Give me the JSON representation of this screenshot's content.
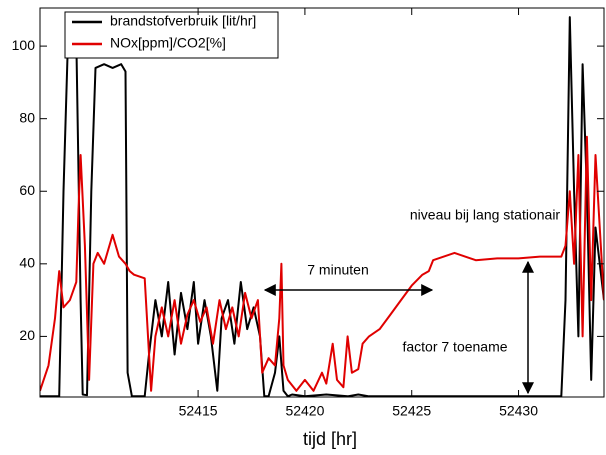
{
  "chart_data": {
    "type": "line",
    "x_label": "tijd [hr]",
    "xlim": [
      52407.6,
      52434.0
    ],
    "xticks": [
      52415,
      52420,
      52425,
      52430
    ],
    "ylim": [
      3.3,
      110.5
    ],
    "yticks": [
      20,
      40,
      60,
      80,
      100
    ],
    "grid": false,
    "legend": "top-left",
    "series": [
      {
        "name": "brandstofverbruik [lit/hr]",
        "color": "#000000",
        "x": [
          52407.6,
          52408.5,
          52408.7,
          52408.9,
          52409.3,
          52409.5,
          52409.6,
          52409.8,
          52410.0,
          52410.2,
          52410.6,
          52411.0,
          52411.4,
          52411.6,
          52411.7,
          52411.9,
          52412.5,
          52412.7,
          52413.0,
          52413.3,
          52413.6,
          52413.9,
          52414.2,
          52414.5,
          52414.8,
          52415.0,
          52415.3,
          52415.6,
          52415.9,
          52416.1,
          52416.4,
          52416.7,
          52417.0,
          52417.3,
          52417.6,
          52417.9,
          52418.1,
          52418.3,
          52418.6,
          52418.8,
          52419.0,
          52419.2,
          52419.4,
          52420.0,
          52421.0,
          52422.0,
          52422.5,
          52423.0,
          52424.0,
          52428.0,
          52432.0,
          52432.2,
          52432.4,
          52432.6,
          52432.8,
          52433.0,
          52433.2,
          52433.4,
          52433.6,
          52434.0
        ],
        "values": [
          3.5,
          3.5,
          60,
          100,
          102,
          30,
          4,
          3.8,
          60,
          94,
          95,
          94,
          95,
          93,
          10,
          3.5,
          3.5,
          15,
          30,
          20,
          35,
          15,
          32,
          22,
          35,
          18,
          30,
          20,
          5,
          25,
          30,
          18,
          35,
          22,
          28,
          20,
          3.5,
          3.5,
          10,
          20,
          5,
          3.5,
          4,
          3.5,
          4,
          3.5,
          4,
          3.5,
          3.5,
          3.5,
          3.5,
          30,
          108,
          60,
          20,
          95,
          60,
          8,
          50,
          30
        ]
      },
      {
        "name": "NOx[ppm]/CO2[%]",
        "color": "#e00000",
        "x": [
          52407.6,
          52408.0,
          52408.3,
          52408.5,
          52408.7,
          52409.0,
          52409.3,
          52409.4,
          52409.5,
          52409.7,
          52409.9,
          52410.1,
          52410.3,
          52410.6,
          52411.0,
          52411.3,
          52411.6,
          52411.8,
          52412.0,
          52412.5,
          52412.8,
          52413.0,
          52413.3,
          52413.6,
          52413.9,
          52414.2,
          52414.5,
          52414.8,
          52415.1,
          52415.4,
          52415.7,
          52416.0,
          52416.3,
          52416.6,
          52416.9,
          52417.2,
          52417.5,
          52417.8,
          52418.0,
          52418.3,
          52418.6,
          52418.8,
          52418.9,
          52419.0,
          52419.2,
          52419.6,
          52420.0,
          52420.4,
          52420.8,
          52421.0,
          52421.3,
          52421.5,
          52421.8,
          52422.0,
          52422.2,
          52422.5,
          52422.7,
          52423.0,
          52423.5,
          52424.0,
          52424.5,
          52425.0,
          52425.5,
          52425.8,
          52426.0,
          52426.5,
          52427.0,
          52427.5,
          52428.0,
          52429.0,
          52430.0,
          52431.0,
          52432.0,
          52432.2,
          52432.4,
          52432.6,
          52432.8,
          52433.0,
          52433.2,
          52433.4,
          52433.6,
          52434.0
        ],
        "values": [
          5,
          12,
          25,
          38,
          28,
          30,
          35,
          55,
          70,
          45,
          8,
          40,
          43,
          40,
          48,
          42,
          40,
          38,
          37,
          36,
          5,
          20,
          28,
          20,
          30,
          18,
          26,
          30,
          24,
          28,
          18,
          30,
          22,
          28,
          20,
          32,
          25,
          30,
          10,
          14,
          12,
          25,
          40,
          12,
          8,
          5,
          8,
          5,
          10,
          7,
          18,
          8,
          6,
          20,
          10,
          11,
          18,
          20,
          22,
          26,
          30,
          34,
          37,
          38,
          41,
          42,
          43,
          42,
          41,
          41.5,
          41.5,
          42,
          42,
          45,
          60,
          40,
          70,
          20,
          75,
          30,
          70,
          30
        ]
      }
    ],
    "annotations": [
      "7 minuten",
      "niveau bij lang stationair",
      "factor 7 toename"
    ]
  }
}
